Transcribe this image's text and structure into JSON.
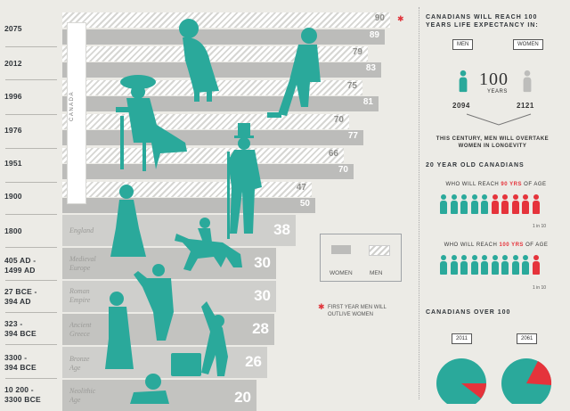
{
  "eras": [
    {
      "label": "2075"
    },
    {
      "label": "2012"
    },
    {
      "label": "1996"
    },
    {
      "label": "1976"
    },
    {
      "label": "1951"
    },
    {
      "label": "1900"
    },
    {
      "label": "1800",
      "region": "England",
      "value": "38"
    },
    {
      "label": "405 AD -\n1499 AD",
      "region": "Medieval\nEurope",
      "value": "30"
    },
    {
      "label": "27 BCE -\n394 AD",
      "region": "Roman\nEmpire",
      "value": "30"
    },
    {
      "label": "323 -\n394 BCE",
      "region": "Ancient\nGreece",
      "value": "28"
    },
    {
      "label": "3300 -\n394 BCE",
      "region": "Bronze\nAge",
      "value": "26"
    },
    {
      "label": "10 200 -\n3300 BCE",
      "region": "Neolithic\nAge",
      "value": "20"
    }
  ],
  "canada_bars": [
    {
      "men": "90",
      "women": "89"
    },
    {
      "men": "79",
      "women": "83"
    },
    {
      "men": "75",
      "women": "81"
    },
    {
      "men": "70",
      "women": "77"
    },
    {
      "men": "66",
      "women": "70"
    },
    {
      "men": "47",
      "women": "50"
    }
  ],
  "canada_label": "CANADA",
  "legend": {
    "women": "WOMEN",
    "men": "MEN"
  },
  "note": "FIRST YEAR MEN WILL OUTLIVE WOMEN",
  "right": {
    "title": "CANADIANS WILL REACH 100 YEARS LIFE EXPECTANCY IN:",
    "men_tag": "MEN",
    "women_tag": "WOMEN",
    "hundred": "100",
    "years": "YEARS",
    "men_year": "2094",
    "women_year": "2121",
    "overtake": "THIS CENTURY, MEN WILL OVERTAKE WOMEN IN LONGEVITY",
    "section2": "20 YEAR OLD CANADIANS",
    "reach90_pre": "WHO WILL REACH ",
    "reach90_hi": "90 YRS",
    "reach90_post": " OF AGE",
    "reach90_note": "1 in 10",
    "reach100_pre": "WHO WILL REACH ",
    "reach100_hi": "100 YRS",
    "reach100_post": " OF AGE",
    "reach100_note": "1 in 10",
    "section3": "CANADIANS OVER 100",
    "year_a": "2011",
    "year_b": "2061"
  },
  "colors": {
    "teal": "#2aa99b",
    "red": "#e5333b",
    "bg": "#ecebe6"
  }
}
